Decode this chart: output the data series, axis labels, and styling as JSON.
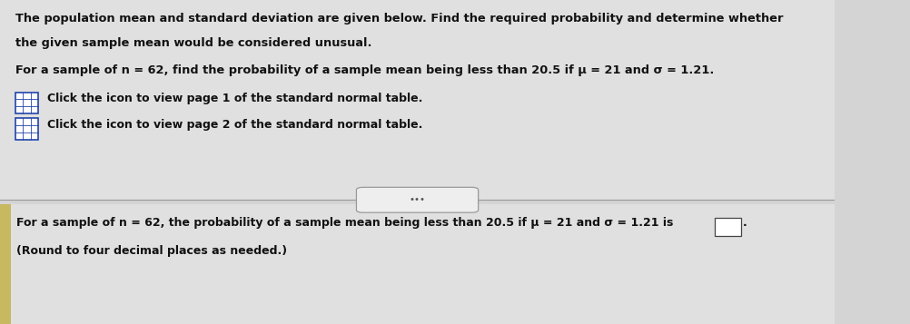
{
  "bg_color": "#d4d4d4",
  "top_bg_color": "#e0e0e0",
  "bottom_bg_color": "#e0e0e0",
  "divider_color": "#999999",
  "text_color": "#111111",
  "line1": "The population mean and standard deviation are given below. Find the required probability and determine whether",
  "line2": "the given sample mean would be considered unusual.",
  "line3": "For a sample of n = 62, find the probability of a sample mean being less than 20.5 if μ = 21 and σ = 1.21.",
  "line4": "Click the icon to view page 1 of the standard normal table.",
  "line5": "Click the icon to view page 2 of the standard normal table.",
  "line6_pre": "For a sample of n = 62, the probability of a sample mean being less than 20.5 if μ = 21 and σ = 1.21 is",
  "line7": "(Round to four decimal places as needed.)",
  "divider_btn_text": "•••",
  "icon_color": "#2244aa",
  "answer_box_color": "#ffffff",
  "answer_box_border": "#444444",
  "left_strip_color": "#c8b860"
}
